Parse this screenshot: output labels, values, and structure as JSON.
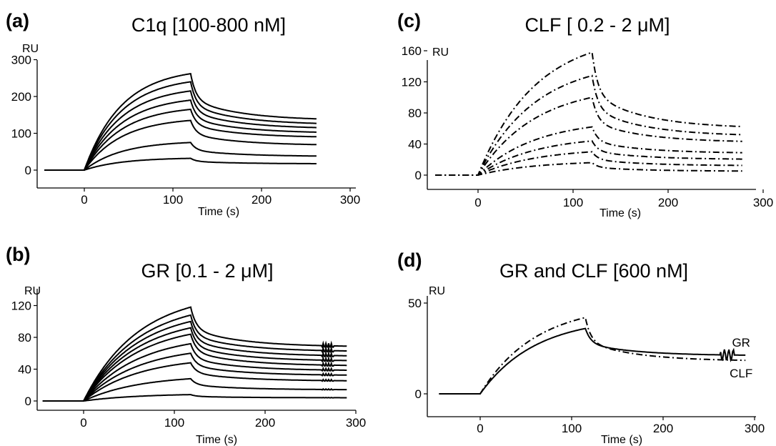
{
  "chart_data": [
    {
      "panel": "(a)",
      "type": "line",
      "title": "C1q [100-800 nM]",
      "xlabel": "Time (s)",
      "ylabel": "RU",
      "xlim": [
        -50,
        300
      ],
      "ylim": [
        -50,
        300
      ],
      "xticks": [
        0,
        100,
        200,
        300
      ],
      "yticks": [
        0,
        100,
        200,
        300
      ],
      "x_inject_start": 0,
      "x_inject_end": 120,
      "x_end": 262,
      "series": [
        {
          "peak": 262,
          "end": 135,
          "style": "solid"
        },
        {
          "peak": 240,
          "end": 123,
          "style": "solid"
        },
        {
          "peak": 215,
          "end": 112,
          "style": "solid"
        },
        {
          "peak": 190,
          "end": 100,
          "style": "solid"
        },
        {
          "peak": 165,
          "end": 88,
          "style": "solid"
        },
        {
          "peak": 135,
          "end": 67,
          "style": "solid"
        },
        {
          "peak": 75,
          "end": 37,
          "style": "solid"
        },
        {
          "peak": 32,
          "end": 17,
          "style": "solid"
        }
      ]
    },
    {
      "panel": "(b)",
      "type": "line",
      "title": "GR [0.1 - 2 μM]",
      "xlabel": "Time (s)",
      "ylabel": "RU",
      "xlim": [
        -50,
        300
      ],
      "ylim": [
        -10,
        130
      ],
      "xticks": [
        0,
        100,
        200,
        300
      ],
      "yticks": [
        0,
        40,
        80,
        120
      ],
      "x_inject_start": 0,
      "x_inject_end": 118,
      "x_end": 290,
      "series": [
        {
          "peak": 118,
          "end": 68,
          "style": "solid"
        },
        {
          "peak": 108,
          "end": 62,
          "style": "solid"
        },
        {
          "peak": 100,
          "end": 56,
          "style": "solid"
        },
        {
          "peak": 92,
          "end": 50,
          "style": "solid"
        },
        {
          "peak": 84,
          "end": 44,
          "style": "solid"
        },
        {
          "peak": 72,
          "end": 38,
          "style": "solid"
        },
        {
          "peak": 60,
          "end": 32,
          "style": "solid"
        },
        {
          "peak": 48,
          "end": 25,
          "style": "solid"
        },
        {
          "peak": 28,
          "end": 14,
          "style": "solid"
        },
        {
          "peak": 8,
          "end": 4,
          "style": "solid"
        }
      ]
    },
    {
      "panel": "(c)",
      "type": "line",
      "title": "CLF [ 0.2 - 2 μM]",
      "xlabel": "Time (s)",
      "ylabel": "RU",
      "xlim": [
        -50,
        300
      ],
      "ylim": [
        -10,
        170
      ],
      "xticks": [
        0,
        100,
        200,
        300
      ],
      "yticks": [
        0,
        40,
        80,
        120,
        160
      ],
      "x_inject_start": 0,
      "x_inject_end": 120,
      "x_end": 278,
      "series": [
        {
          "peak": 158,
          "end": 60,
          "style": "dashdot"
        },
        {
          "peak": 128,
          "end": 50,
          "style": "dashdot"
        },
        {
          "peak": 100,
          "end": 42,
          "style": "dashdot"
        },
        {
          "peak": 62,
          "end": 28,
          "style": "dashdot"
        },
        {
          "peak": 44,
          "end": 20,
          "style": "dashdot"
        },
        {
          "peak": 30,
          "end": 12,
          "style": "dashdot"
        },
        {
          "peak": 16,
          "end": 5,
          "style": "dashdot"
        }
      ]
    },
    {
      "panel": "(d)",
      "type": "line",
      "title": "GR and CLF [600 nM]",
      "xlabel": "Time (s)",
      "ylabel": "RU",
      "xlim": [
        -50,
        300
      ],
      "ylim": [
        -10,
        52
      ],
      "xticks": [
        0,
        100,
        200,
        300
      ],
      "yticks": [
        0,
        50
      ],
      "x_inject_start": 0,
      "x_inject_end": 115,
      "x_end": 290,
      "series": [
        {
          "name": "GR",
          "peak": 36,
          "end": 21,
          "style": "solid"
        },
        {
          "name": "CLF",
          "peak": 42,
          "end": 18,
          "style": "dashdot"
        }
      ]
    }
  ]
}
